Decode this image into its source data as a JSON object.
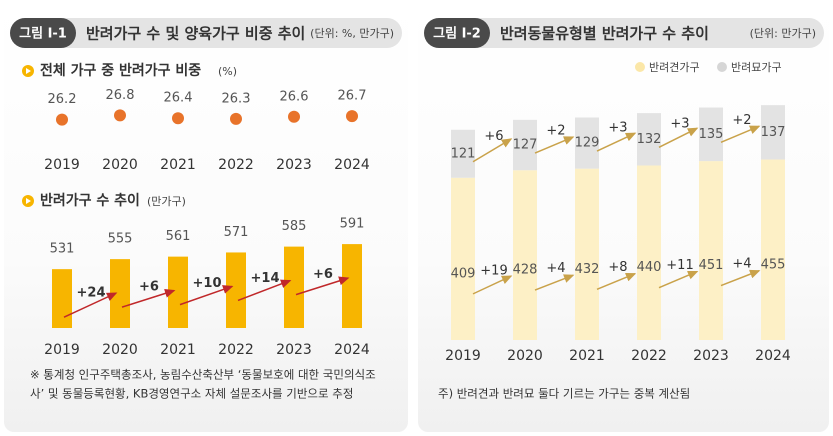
{
  "panels": [
    {
      "badge": "그림 Ⅰ-1",
      "title": "반려가구 수 및 양육가구 비중 추이",
      "unit": "(단위: %, 만가구)",
      "footnote": [
        "※ 통계청 인구주택총조사, 농림수산축산부 ‘동물보호에 대한 국민의식조",
        "사’ 및 동물등록현황, KB경영연구소 자체 설문조사를 기반으로 추정"
      ]
    },
    {
      "badge": "그림 Ⅰ-2",
      "title": "반려동물유형별 반려가구 수 추이",
      "unit": "(단위: 만가구)",
      "footnote": [
        "주) 반려견과 반려묘 둘다 기르는 가구는 중복 계산됨"
      ]
    }
  ],
  "chart_data": [
    {
      "type": "dot",
      "title": "전체 가구 중 반려가구 비중",
      "unit": "(%)",
      "categories": [
        "2019",
        "2020",
        "2021",
        "2022",
        "2023",
        "2024"
      ],
      "values": [
        26.2,
        26.8,
        26.4,
        26.3,
        26.6,
        26.7
      ],
      "color": "#e8732a",
      "ylim": [
        24,
        29
      ]
    },
    {
      "type": "bar",
      "title": "반려가구 수 추이",
      "unit": "(만가구)",
      "categories": [
        "2019",
        "2020",
        "2021",
        "2022",
        "2023",
        "2024"
      ],
      "values": [
        531,
        555,
        561,
        571,
        585,
        591
      ],
      "color": "#f7b500",
      "ylim": [
        390,
        620
      ],
      "change_labels": [
        "+24",
        "+6",
        "+10",
        "+14",
        "+6"
      ]
    },
    {
      "type": "stacked_bar",
      "categories": [
        "2019",
        "2020",
        "2021",
        "2022",
        "2023",
        "2024"
      ],
      "series": [
        {
          "name": "반려견가구",
          "color": "#fdf0c6",
          "values": [
            409,
            428,
            432,
            440,
            451,
            455
          ],
          "change_labels": [
            "+19",
            "+4",
            "+8",
            "+11",
            "+4"
          ]
        },
        {
          "name": "반려묘가구",
          "color": "#e3e3e3",
          "values": [
            121,
            127,
            129,
            132,
            135,
            137
          ],
          "change_labels": [
            "+6",
            "+2",
            "+3",
            "+3",
            "+2"
          ]
        }
      ],
      "ylim": [
        0,
        600
      ],
      "legend": "top-right"
    }
  ]
}
